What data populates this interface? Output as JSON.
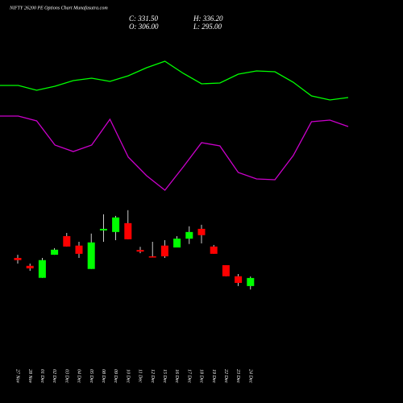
{
  "chart_data": [
    {
      "type": "line",
      "ylim": [
        0,
        500
      ],
      "series": [
        {
          "color": "#00ff00",
          "values": [
            394,
            394,
            388,
            393,
            400,
            403,
            399,
            406,
            416,
            424,
            409,
            396,
            397,
            408,
            412,
            411,
            398,
            381,
            376,
            379
          ]
        },
        {
          "color": "#cc00cc",
          "values": [
            356,
            356,
            350,
            320,
            312,
            320,
            352,
            305,
            282,
            264,
            293,
            323,
            319,
            286,
            278,
            277,
            307,
            349,
            351,
            343
          ]
        }
      ]
    },
    {
      "type": "candlestick",
      "title": "NIFTY 26200 PE Options Chart Munafasutra.com",
      "close_label": "C: 331.50",
      "high_label": "H: 336.20",
      "open_label": "O: 306.00",
      "low_label": "L: 295.00",
      "categories": [
        "27 Nov",
        "28 Nov",
        "01 Dec",
        "02 Dec",
        "03 Dec",
        "04 Dec",
        "05 Dec",
        "08 Dec",
        "09 Dec",
        "10 Dec",
        "11 Dec",
        "12 Dec",
        "15 Dec",
        "16 Dec",
        "17 Dec",
        "18 Dec",
        "19 Dec",
        "22 Dec",
        "23 Dec",
        "24 Dec"
      ],
      "open": [
        395,
        370,
        332,
        405,
        464,
        434,
        360,
        482,
        477,
        505,
        420,
        400,
        434,
        428,
        456,
        487,
        431,
        372,
        337,
        306
      ],
      "high": [
        405,
        377,
        395,
        426,
        474,
        446,
        472,
        533,
        528,
        546,
        430,
        446,
        451,
        464,
        495,
        500,
        436,
        372,
        344,
        336.2
      ],
      "low": [
        377,
        354,
        332,
        405,
        431,
        395,
        360,
        446,
        451,
        454,
        410,
        398,
        395,
        428,
        439,
        441,
        408,
        337,
        306,
        295
      ],
      "close": [
        388,
        362,
        388,
        421,
        431,
        408,
        444,
        487,
        523,
        454,
        415,
        398,
        400,
        456,
        477,
        467,
        408,
        337,
        316,
        331.5
      ],
      "up_color": "#00ff00",
      "down_color": "#ff0000",
      "wick_color": "#ffffff",
      "ylim": [
        -64,
        1211
      ]
    }
  ]
}
